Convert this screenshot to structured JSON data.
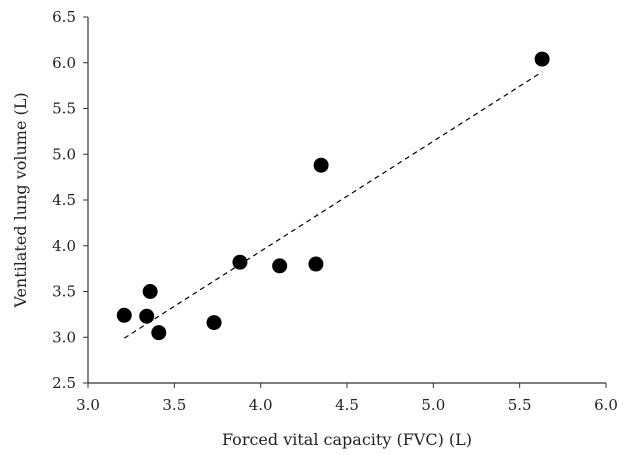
{
  "chart_data": {
    "type": "scatter",
    "title": "",
    "xlabel": "Forced vital capacity (FVC) (L)",
    "ylabel": "Ventilated lung volume (L)",
    "xlim": [
      3.0,
      6.0
    ],
    "ylim": [
      2.5,
      6.5
    ],
    "xticks": [
      "3.0",
      "3.5",
      "4.0",
      "4.5",
      "5.0",
      "5.5",
      "6.0"
    ],
    "yticks": [
      "2.5",
      "3.0",
      "3.5",
      "4.0",
      "4.5",
      "5.0",
      "5.5",
      "6.0",
      "6.5"
    ],
    "grid": false,
    "legend": "none",
    "points": [
      {
        "x": 3.21,
        "y": 3.24
      },
      {
        "x": 3.34,
        "y": 3.23
      },
      {
        "x": 3.36,
        "y": 3.5
      },
      {
        "x": 3.41,
        "y": 3.05
      },
      {
        "x": 3.73,
        "y": 3.16
      },
      {
        "x": 3.88,
        "y": 3.82
      },
      {
        "x": 4.11,
        "y": 3.78
      },
      {
        "x": 4.32,
        "y": 3.8
      },
      {
        "x": 4.35,
        "y": 4.88
      },
      {
        "x": 5.63,
        "y": 6.04
      }
    ],
    "trendline": {
      "style": "dashed",
      "x": [
        3.21,
        5.63
      ],
      "y": [
        2.99,
        5.9
      ]
    },
    "colors": {
      "marker": "#000000",
      "axis": "#333333",
      "trendline": "#000000"
    }
  }
}
